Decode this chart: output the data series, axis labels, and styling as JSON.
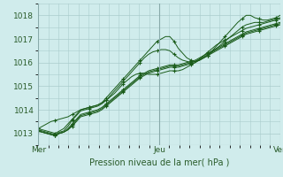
{
  "title": "Pression niveau de la mer( hPa )",
  "bg_color": "#d0ecec",
  "grid_color": "#aacccc",
  "line_color": "#1a5c1a",
  "xlim": [
    0,
    96
  ],
  "ylim": [
    1012.5,
    1018.5
  ],
  "yticks": [
    1013,
    1014,
    1015,
    1016,
    1017,
    1018
  ],
  "xtick_positions": [
    0,
    48,
    96
  ],
  "xtick_labels": [
    "Mer",
    "Jeu",
    "Ven"
  ],
  "series": [
    [
      1013.2,
      1013.15,
      1013.1,
      1013.05,
      1013.0,
      1013.1,
      1013.2,
      1013.4,
      1013.6,
      1013.8,
      1014.0,
      1014.05,
      1014.1,
      1014.15,
      1014.2,
      1014.3,
      1014.5,
      1014.7,
      1014.9,
      1015.1,
      1015.3,
      1015.5,
      1015.7,
      1015.9,
      1016.1,
      1016.3,
      1016.5,
      1016.7,
      1016.9,
      1017.0,
      1017.1,
      1017.1,
      1016.9,
      1016.6,
      1016.4,
      1016.2,
      1016.1,
      1016.05,
      1016.1,
      1016.2,
      1016.3,
      1016.5,
      1016.7,
      1016.9,
      1017.1,
      1017.3,
      1017.5,
      1017.7,
      1017.85,
      1018.0,
      1018.0,
      1017.9,
      1017.85,
      1017.8,
      1017.8,
      1017.85,
      1017.9,
      1018.0
    ],
    [
      1013.15,
      1013.1,
      1013.05,
      1013.0,
      1012.95,
      1013.05,
      1013.1,
      1013.3,
      1013.55,
      1013.75,
      1013.95,
      1014.0,
      1014.05,
      1014.1,
      1014.15,
      1014.25,
      1014.4,
      1014.6,
      1014.8,
      1015.0,
      1015.2,
      1015.4,
      1015.6,
      1015.8,
      1016.0,
      1016.2,
      1016.35,
      1016.45,
      1016.5,
      1016.55,
      1016.55,
      1016.5,
      1016.35,
      1016.2,
      1016.1,
      1016.05,
      1016.0,
      1016.05,
      1016.1,
      1016.2,
      1016.3,
      1016.45,
      1016.6,
      1016.75,
      1016.9,
      1017.05,
      1017.2,
      1017.35,
      1017.5,
      1017.6,
      1017.65,
      1017.7,
      1017.7,
      1017.7,
      1017.75,
      1017.8,
      1017.85,
      1017.9
    ],
    [
      1013.1,
      1013.05,
      1013.0,
      1012.95,
      1012.9,
      1013.0,
      1013.05,
      1013.2,
      1013.4,
      1013.6,
      1013.8,
      1013.85,
      1013.9,
      1013.95,
      1014.0,
      1014.1,
      1014.25,
      1014.4,
      1014.55,
      1014.7,
      1014.85,
      1015.0,
      1015.15,
      1015.3,
      1015.45,
      1015.55,
      1015.65,
      1015.7,
      1015.75,
      1015.8,
      1015.85,
      1015.9,
      1015.9,
      1015.9,
      1015.95,
      1016.0,
      1016.05,
      1016.1,
      1016.2,
      1016.3,
      1016.4,
      1016.5,
      1016.6,
      1016.7,
      1016.8,
      1016.9,
      1017.0,
      1017.1,
      1017.2,
      1017.3,
      1017.35,
      1017.4,
      1017.45,
      1017.5,
      1017.55,
      1017.6,
      1017.65,
      1017.7
    ],
    [
      1013.1,
      1013.05,
      1013.0,
      1012.95,
      1012.9,
      1013.0,
      1013.05,
      1013.15,
      1013.35,
      1013.55,
      1013.75,
      1013.8,
      1013.85,
      1013.9,
      1013.95,
      1014.05,
      1014.2,
      1014.35,
      1014.5,
      1014.65,
      1014.8,
      1014.95,
      1015.1,
      1015.25,
      1015.4,
      1015.5,
      1015.6,
      1015.65,
      1015.7,
      1015.75,
      1015.8,
      1015.85,
      1015.85,
      1015.85,
      1015.9,
      1015.95,
      1016.0,
      1016.05,
      1016.15,
      1016.25,
      1016.35,
      1016.45,
      1016.55,
      1016.65,
      1016.75,
      1016.85,
      1016.95,
      1017.05,
      1017.15,
      1017.25,
      1017.3,
      1017.35,
      1017.4,
      1017.45,
      1017.5,
      1017.55,
      1017.6,
      1017.65
    ],
    [
      1013.1,
      1013.05,
      1013.0,
      1012.95,
      1012.9,
      1013.0,
      1013.05,
      1013.15,
      1013.3,
      1013.5,
      1013.7,
      1013.75,
      1013.8,
      1013.85,
      1013.9,
      1014.0,
      1014.15,
      1014.3,
      1014.45,
      1014.6,
      1014.75,
      1014.9,
      1015.05,
      1015.2,
      1015.35,
      1015.45,
      1015.55,
      1015.6,
      1015.65,
      1015.7,
      1015.75,
      1015.8,
      1015.8,
      1015.8,
      1015.85,
      1015.9,
      1015.95,
      1016.0,
      1016.1,
      1016.2,
      1016.3,
      1016.4,
      1016.5,
      1016.6,
      1016.7,
      1016.8,
      1016.9,
      1017.0,
      1017.1,
      1017.2,
      1017.25,
      1017.3,
      1017.35,
      1017.4,
      1017.45,
      1017.5,
      1017.55,
      1017.6
    ],
    [
      1013.2,
      1013.3,
      1013.4,
      1013.5,
      1013.55,
      1013.6,
      1013.65,
      1013.7,
      1013.8,
      1013.9,
      1014.0,
      1014.05,
      1014.1,
      1014.15,
      1014.2,
      1014.3,
      1014.4,
      1014.55,
      1014.7,
      1014.9,
      1015.1,
      1015.25,
      1015.4,
      1015.5,
      1015.55,
      1015.55,
      1015.5,
      1015.5,
      1015.5,
      1015.55,
      1015.6,
      1015.65,
      1015.65,
      1015.65,
      1015.7,
      1015.8,
      1015.9,
      1016.0,
      1016.15,
      1016.3,
      1016.45,
      1016.6,
      1016.75,
      1016.85,
      1016.95,
      1017.05,
      1017.15,
      1017.25,
      1017.35,
      1017.45,
      1017.5,
      1017.55,
      1017.6,
      1017.65,
      1017.7,
      1017.75,
      1017.8,
      1017.85
    ]
  ]
}
